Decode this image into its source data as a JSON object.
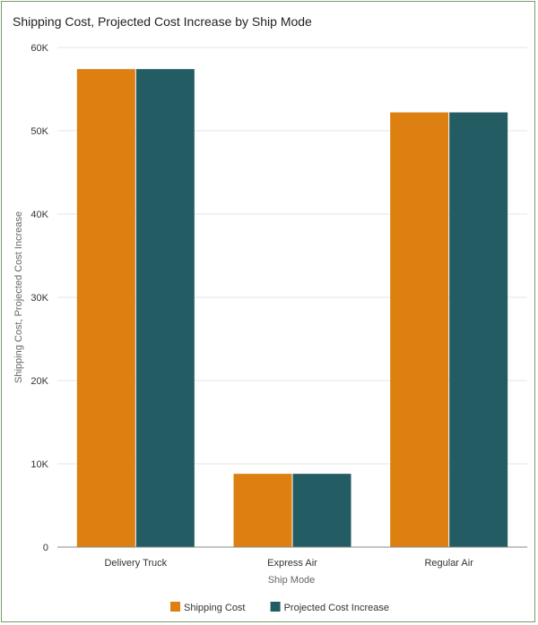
{
  "chart_data": {
    "type": "bar",
    "title": "Shipping Cost, Projected Cost Increase by Ship Mode",
    "xlabel": "Ship Mode",
    "ylabel": "Shipping Cost, Projected Cost Increase",
    "categories": [
      "Delivery Truck",
      "Express Air",
      "Regular Air"
    ],
    "series": [
      {
        "name": "Shipping Cost",
        "color": "#dd7f11",
        "values": [
          57400,
          8800,
          52200
        ]
      },
      {
        "name": "Projected Cost Increase",
        "color": "#245c63",
        "values": [
          57400,
          8800,
          52200
        ]
      }
    ],
    "ylim": [
      0,
      60000
    ],
    "yticks": [
      0,
      10000,
      20000,
      30000,
      40000,
      50000,
      60000
    ],
    "ytick_labels": [
      "0",
      "10K",
      "20K",
      "30K",
      "40K",
      "50K",
      "60K"
    ],
    "grid": true,
    "legend_position": "bottom"
  }
}
